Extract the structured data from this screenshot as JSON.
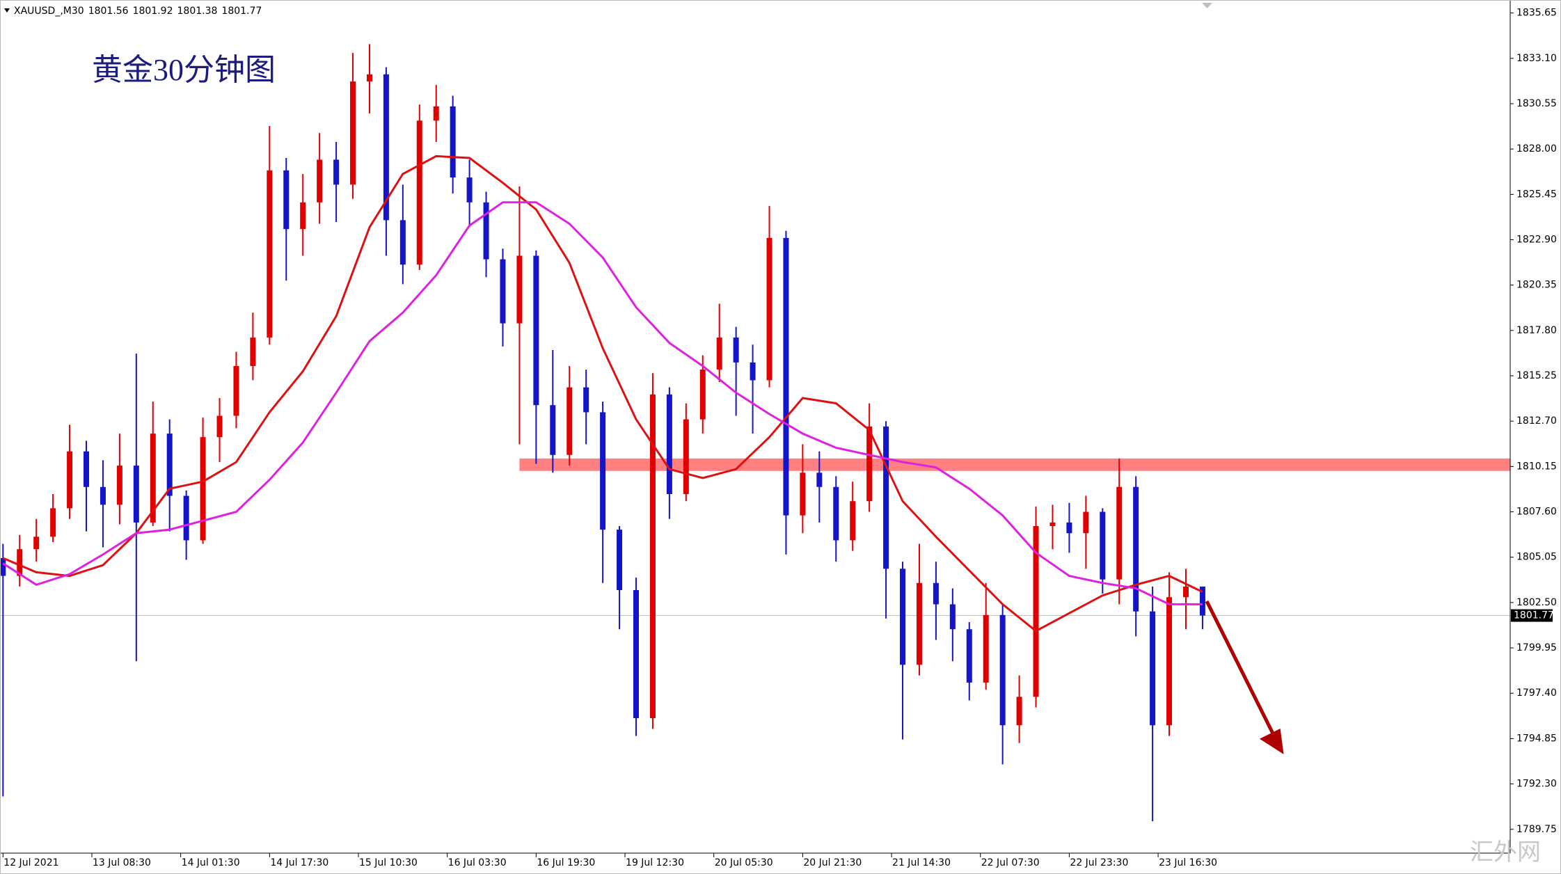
{
  "chart_data": {
    "type": "candlestick",
    "title": "黄金30分钟图",
    "watermark": "汇外网",
    "header": {
      "symbol": "XAUUSD_,M30",
      "ohlc": [
        1801.56,
        1801.92,
        1801.38,
        1801.77
      ]
    },
    "last_price": 1801.77,
    "up_color": "#e00000",
    "down_color": "#1414c8",
    "grid": false,
    "ylim": [
      1788.41,
      1836.38
    ],
    "yticks": [
      1835.65,
      {
        "value": 1833.1,
        "label": "1833.10"
      },
      1830.55,
      {
        "value": 1828.0,
        "label": "1828.00"
      },
      1825.45,
      {
        "value": 1822.9,
        "label": "1822.90"
      },
      1820.35,
      {
        "value": 1817.8,
        "label": "1817.80"
      },
      1815.25,
      {
        "value": 1812.7,
        "label": "1812.70"
      },
      1810.15,
      {
        "value": 1807.6,
        "label": "1807.60"
      },
      1805.05,
      {
        "value": 1802.5,
        "label": "1802.50"
      },
      1799.95,
      {
        "value": 1797.4,
        "label": "1797.40"
      },
      1794.85,
      {
        "value": 1792.3,
        "label": "1792.30"
      },
      1789.75
    ],
    "xlim": [
      -1.08,
      542.8
    ],
    "xticks": [
      {
        "value": 0,
        "label": "12 Jul 2021"
      },
      {
        "value": 32,
        "label": "13 Jul 08:30"
      },
      {
        "value": 64,
        "label": "14 Jul 01:30"
      },
      {
        "value": 96,
        "label": "14 Jul 17:30"
      },
      {
        "value": 128,
        "label": "15 Jul 10:30"
      },
      {
        "value": 160,
        "label": "16 Jul 03:30"
      },
      {
        "value": 192,
        "label": "16 Jul 19:30"
      },
      {
        "value": 224,
        "label": "19 Jul 12:30"
      },
      {
        "value": 256,
        "label": "20 Jul 05:30"
      },
      {
        "value": 288,
        "label": "20 Jul 21:30"
      },
      {
        "value": 320,
        "label": "21 Jul 14:30"
      },
      {
        "value": 352,
        "label": "22 Jul 07:30"
      },
      {
        "value": 384,
        "label": "22 Jul 23:30"
      },
      {
        "value": 416,
        "label": "23 Jul 16:30"
      }
    ],
    "candles": {
      "x": [
        0,
        6,
        12,
        18,
        24,
        30,
        36,
        42,
        48,
        54,
        60,
        66,
        72,
        78,
        84,
        90,
        96,
        102,
        108,
        114,
        120,
        126,
        132,
        138,
        144,
        150,
        156,
        162,
        168,
        174,
        180,
        186,
        192,
        198,
        204,
        210,
        216,
        222,
        228,
        234,
        240,
        246,
        252,
        258,
        264,
        270,
        276,
        282,
        288,
        294,
        300,
        306,
        312,
        318,
        324,
        330,
        336,
        342,
        348,
        354,
        360,
        366,
        372,
        378,
        384,
        390,
        396,
        402,
        408,
        414,
        420,
        426,
        432
      ],
      "open": [
        1805.0,
        1804.0,
        1805.5,
        1806.2,
        1807.8,
        1811.0,
        1809.0,
        1808.0,
        1810.2,
        1807.0,
        1812.0,
        1808.5,
        1806.0,
        1811.8,
        1813.0,
        1815.8,
        1817.4,
        1826.8,
        1823.5,
        1825.0,
        1827.4,
        1826.0,
        1831.8,
        1832.2,
        1824.0,
        1821.5,
        1829.6,
        1830.4,
        1826.4,
        1825.0,
        1821.8,
        1818.2,
        1822.0,
        1813.6,
        1810.8,
        1814.6,
        1813.2,
        1806.6,
        1803.2,
        1796.0,
        1814.2,
        1808.6,
        1812.8,
        1815.6,
        1817.4,
        1816.0,
        1815.0,
        1823.0,
        1807.4,
        1809.8,
        1809.0,
        1806.0,
        1808.2,
        1812.4,
        1804.4,
        1799.0,
        1803.6,
        1802.4,
        1801.0,
        1798.0,
        1801.8,
        1795.6,
        1797.2,
        1806.8,
        1807.0,
        1806.4,
        1807.6,
        1803.8,
        1809.0,
        1802.0,
        1795.6,
        1802.8,
        1803.4
      ],
      "high": [
        1805.8,
        1806.3,
        1807.2,
        1808.6,
        1812.5,
        1811.6,
        1810.5,
        1812.0,
        1816.5,
        1813.8,
        1812.8,
        1808.8,
        1812.9,
        1814.0,
        1816.6,
        1818.8,
        1829.3,
        1827.5,
        1826.6,
        1828.9,
        1828.4,
        1833.4,
        1833.9,
        1832.6,
        1826.0,
        1830.5,
        1831.6,
        1831.0,
        1827.4,
        1825.6,
        1822.4,
        1825.9,
        1822.3,
        1816.7,
        1815.8,
        1815.6,
        1813.8,
        1806.8,
        1803.9,
        1815.4,
        1814.6,
        1813.7,
        1816.4,
        1819.3,
        1818.0,
        1817.0,
        1824.8,
        1823.4,
        1811.4,
        1811.0,
        1809.6,
        1809.3,
        1813.7,
        1812.7,
        1804.8,
        1805.8,
        1804.8,
        1803.3,
        1801.4,
        1803.6,
        1802.4,
        1798.4,
        1807.9,
        1808.0,
        1808.1,
        1808.5,
        1807.8,
        1810.6,
        1809.6,
        1803.4,
        1804.2,
        1804.4,
        1803.2
      ],
      "low": [
        1791.6,
        1803.4,
        1804.8,
        1805.9,
        1807.2,
        1806.5,
        1805.6,
        1806.9,
        1799.2,
        1806.8,
        1806.5,
        1804.9,
        1805.8,
        1810.4,
        1812.3,
        1815.0,
        1817.0,
        1820.6,
        1822.0,
        1823.8,
        1823.9,
        1825.2,
        1830.0,
        1822.0,
        1820.4,
        1821.2,
        1828.4,
        1825.5,
        1823.6,
        1820.8,
        1816.9,
        1811.4,
        1810.3,
        1809.8,
        1810.2,
        1811.4,
        1803.6,
        1801.0,
        1795.0,
        1795.4,
        1807.2,
        1808.2,
        1812.0,
        1814.9,
        1813.0,
        1812.0,
        1814.6,
        1805.2,
        1806.4,
        1807.0,
        1804.8,
        1805.4,
        1807.6,
        1801.6,
        1794.8,
        1798.4,
        1800.4,
        1799.2,
        1797.0,
        1797.6,
        1793.4,
        1794.6,
        1796.6,
        1805.5,
        1805.3,
        1804.4,
        1803.0,
        1802.4,
        1800.6,
        1790.2,
        1795.0,
        1801.0,
        1801.0
      ],
      "close": [
        1804.0,
        1805.5,
        1806.2,
        1807.8,
        1811.0,
        1809.0,
        1808.0,
        1810.2,
        1807.0,
        1812.0,
        1808.5,
        1806.0,
        1811.8,
        1813.0,
        1815.8,
        1817.4,
        1826.8,
        1823.5,
        1825.0,
        1827.4,
        1826.0,
        1831.8,
        1832.2,
        1824.0,
        1821.5,
        1829.6,
        1830.4,
        1826.4,
        1825.0,
        1821.8,
        1818.2,
        1822.0,
        1813.6,
        1810.8,
        1814.6,
        1813.2,
        1806.6,
        1803.2,
        1796.0,
        1814.2,
        1808.6,
        1812.8,
        1815.6,
        1817.4,
        1816.0,
        1815.0,
        1823.0,
        1807.4,
        1809.8,
        1809.0,
        1806.0,
        1808.2,
        1812.4,
        1804.4,
        1799.0,
        1803.6,
        1802.4,
        1801.0,
        1798.0,
        1801.8,
        1795.6,
        1797.2,
        1806.8,
        1807.0,
        1806.4,
        1807.6,
        1803.8,
        1809.0,
        1802.0,
        1795.6,
        1802.8,
        1803.4,
        1801.77
      ]
    },
    "lines": [
      {
        "color": "#dd1111",
        "x": [
          0,
          12,
          24,
          36,
          48,
          60,
          72,
          84,
          96,
          108,
          120,
          132,
          144,
          156,
          168,
          180,
          192,
          204,
          216,
          228,
          240,
          252,
          264,
          276,
          288,
          300,
          312,
          324,
          336,
          348,
          360,
          372,
          384,
          396,
          408,
          420,
          432
        ],
        "values": [
          1805.0,
          1804.2,
          1804.0,
          1804.6,
          1806.4,
          1808.9,
          1809.3,
          1810.4,
          1813.2,
          1815.5,
          1818.6,
          1823.6,
          1826.6,
          1827.6,
          1827.5,
          1826.1,
          1824.6,
          1821.6,
          1816.8,
          1812.8,
          1810.0,
          1809.5,
          1810.0,
          1811.8,
          1814.0,
          1813.7,
          1812.2,
          1808.2,
          1806.2,
          1804.3,
          1802.4,
          1800.9,
          1801.9,
          1802.9,
          1803.5,
          1804.0,
          1803.1
        ]
      },
      {
        "color": "#e020e0",
        "x": [
          0,
          12,
          24,
          36,
          48,
          60,
          72,
          84,
          96,
          108,
          120,
          132,
          144,
          156,
          168,
          180,
          192,
          204,
          216,
          228,
          240,
          252,
          264,
          276,
          288,
          300,
          312,
          324,
          336,
          348,
          360,
          372,
          384,
          396,
          408,
          420,
          432
        ],
        "values": [
          1804.7,
          1803.5,
          1804.1,
          1805.2,
          1806.4,
          1806.6,
          1807.1,
          1807.6,
          1809.4,
          1811.5,
          1814.3,
          1817.2,
          1818.8,
          1820.9,
          1823.7,
          1825.0,
          1825.0,
          1823.8,
          1821.9,
          1819.1,
          1817.1,
          1815.8,
          1814.3,
          1813.1,
          1812.0,
          1811.2,
          1810.8,
          1810.4,
          1810.1,
          1808.9,
          1807.4,
          1805.3,
          1804.0,
          1803.6,
          1803.3,
          1802.4,
          1802.4
        ]
      }
    ],
    "resistance_zone": {
      "x_start": 186,
      "top": 1810.6,
      "bottom": 1809.9,
      "color": "#ff8080"
    }
  }
}
